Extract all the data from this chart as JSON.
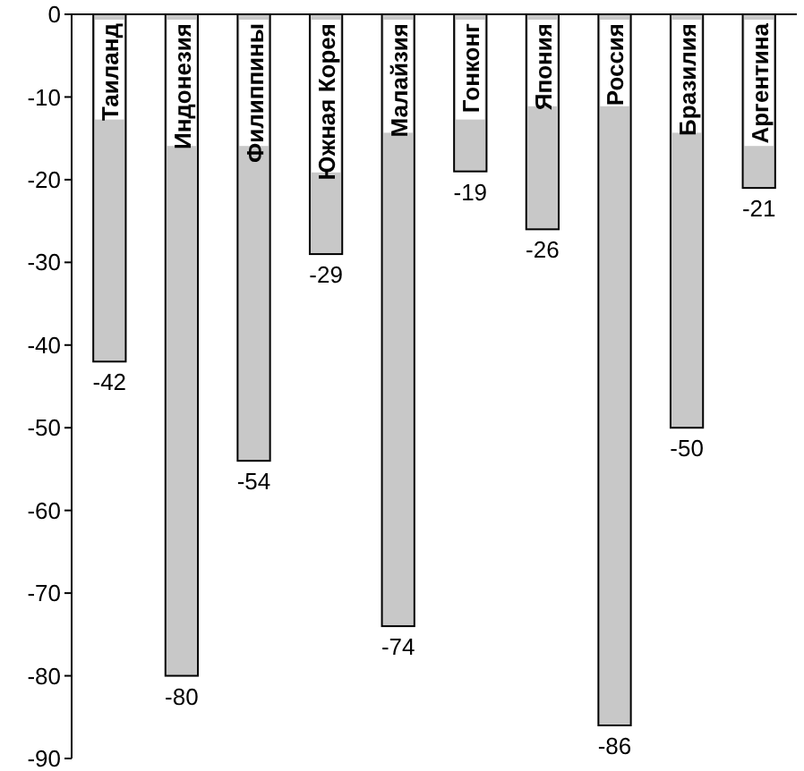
{
  "chart_data": {
    "type": "bar",
    "categories": [
      "Таиланд",
      "Индонезия",
      "Филиппины",
      "Южная Корея",
      "Малайзия",
      "Гонконг",
      "Япония",
      "Россия",
      "Бразилия",
      "Аргентина"
    ],
    "values": [
      -42,
      -80,
      -54,
      -29,
      -74,
      -19,
      -26,
      -86,
      -50,
      -21
    ],
    "color": "#c8c8c8",
    "ylim": [
      -90,
      0
    ],
    "yticks": [
      0,
      -10,
      -20,
      -30,
      -40,
      -50,
      -60,
      -70,
      -80,
      -90
    ],
    "data_labels": true,
    "grid": false
  }
}
